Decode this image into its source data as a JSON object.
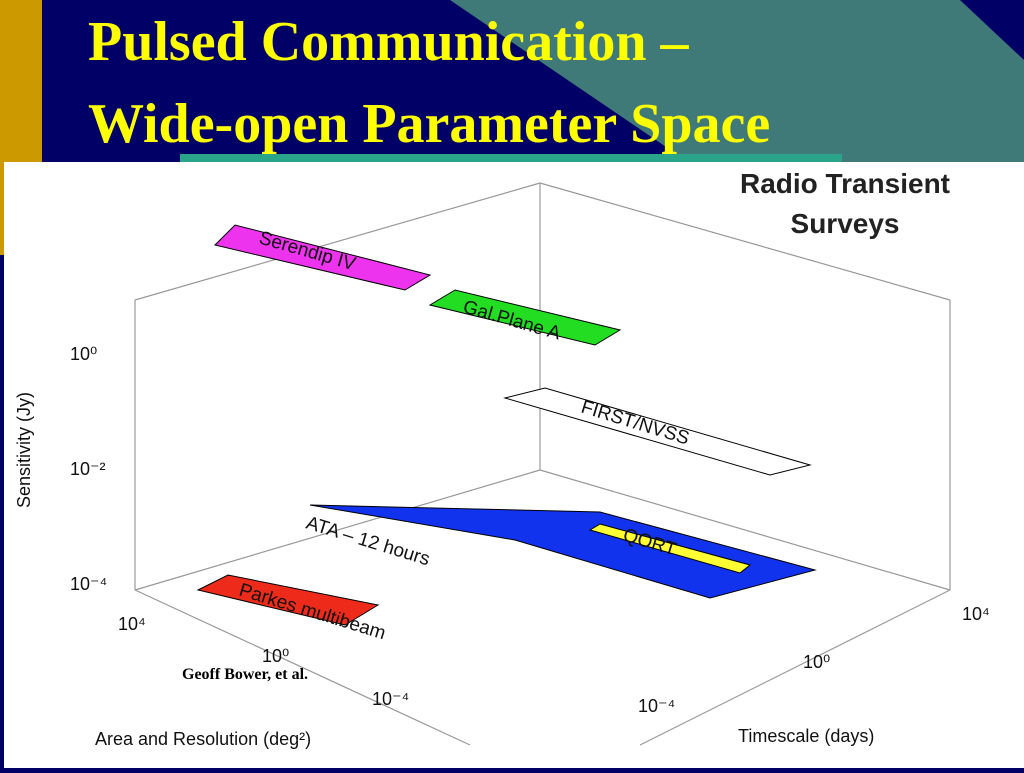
{
  "title": [
    "Pulsed Communication –",
    "Wide-open Parameter Space"
  ],
  "figure": {
    "heading": [
      "Radio Transient",
      "Surveys"
    ],
    "surveys": [
      "Serendip IV",
      "Gal.Plane A",
      "FIRST/NVSS",
      "ATA – 12 hours",
      "QORT",
      "Parkes multibeam"
    ],
    "sensitivity_axis": {
      "label": "Sensitivity (Jy)",
      "ticks": [
        "10⁰",
        "10⁻²",
        "10⁻⁴"
      ]
    },
    "area_axis": {
      "label": "Area and Resolution (deg²)",
      "ticks": [
        "10⁴",
        "10⁰",
        "10⁻⁴"
      ]
    },
    "timescale_axis": {
      "label": "Timescale (days)",
      "ticks": [
        "10⁻⁴",
        "10⁰",
        "10⁴"
      ]
    },
    "credit": "Geoff Bower, et al."
  }
}
